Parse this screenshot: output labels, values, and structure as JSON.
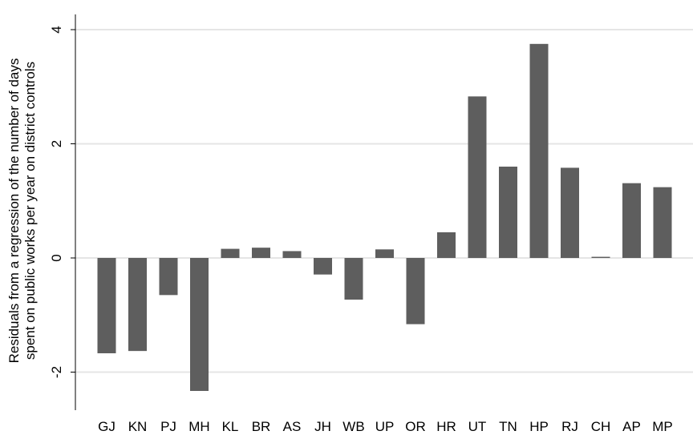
{
  "chart_data": {
    "type": "bar",
    "categories": [
      "GJ",
      "KN",
      "PJ",
      "MH",
      "KL",
      "BR",
      "AS",
      "JH",
      "WB",
      "UP",
      "OR",
      "HR",
      "UT",
      "TN",
      "HP",
      "RJ",
      "CH",
      "AP",
      "MP"
    ],
    "values": [
      -1.67,
      -1.63,
      -0.65,
      -2.33,
      0.16,
      0.18,
      0.12,
      -0.29,
      -0.73,
      0.15,
      -1.16,
      0.45,
      2.83,
      1.6,
      3.75,
      1.58,
      0.02,
      1.31,
      1.24
    ],
    "ylabel": [
      "Residuals from a regression of the number of days",
      "spent on public works  per year on district controls"
    ],
    "yticks": [
      -2,
      0,
      2,
      4
    ],
    "ylim": [
      -2.7,
      4.3
    ],
    "grid": true,
    "bar_color": "#5e5e5e",
    "grid_color": "#e5e5e5"
  }
}
